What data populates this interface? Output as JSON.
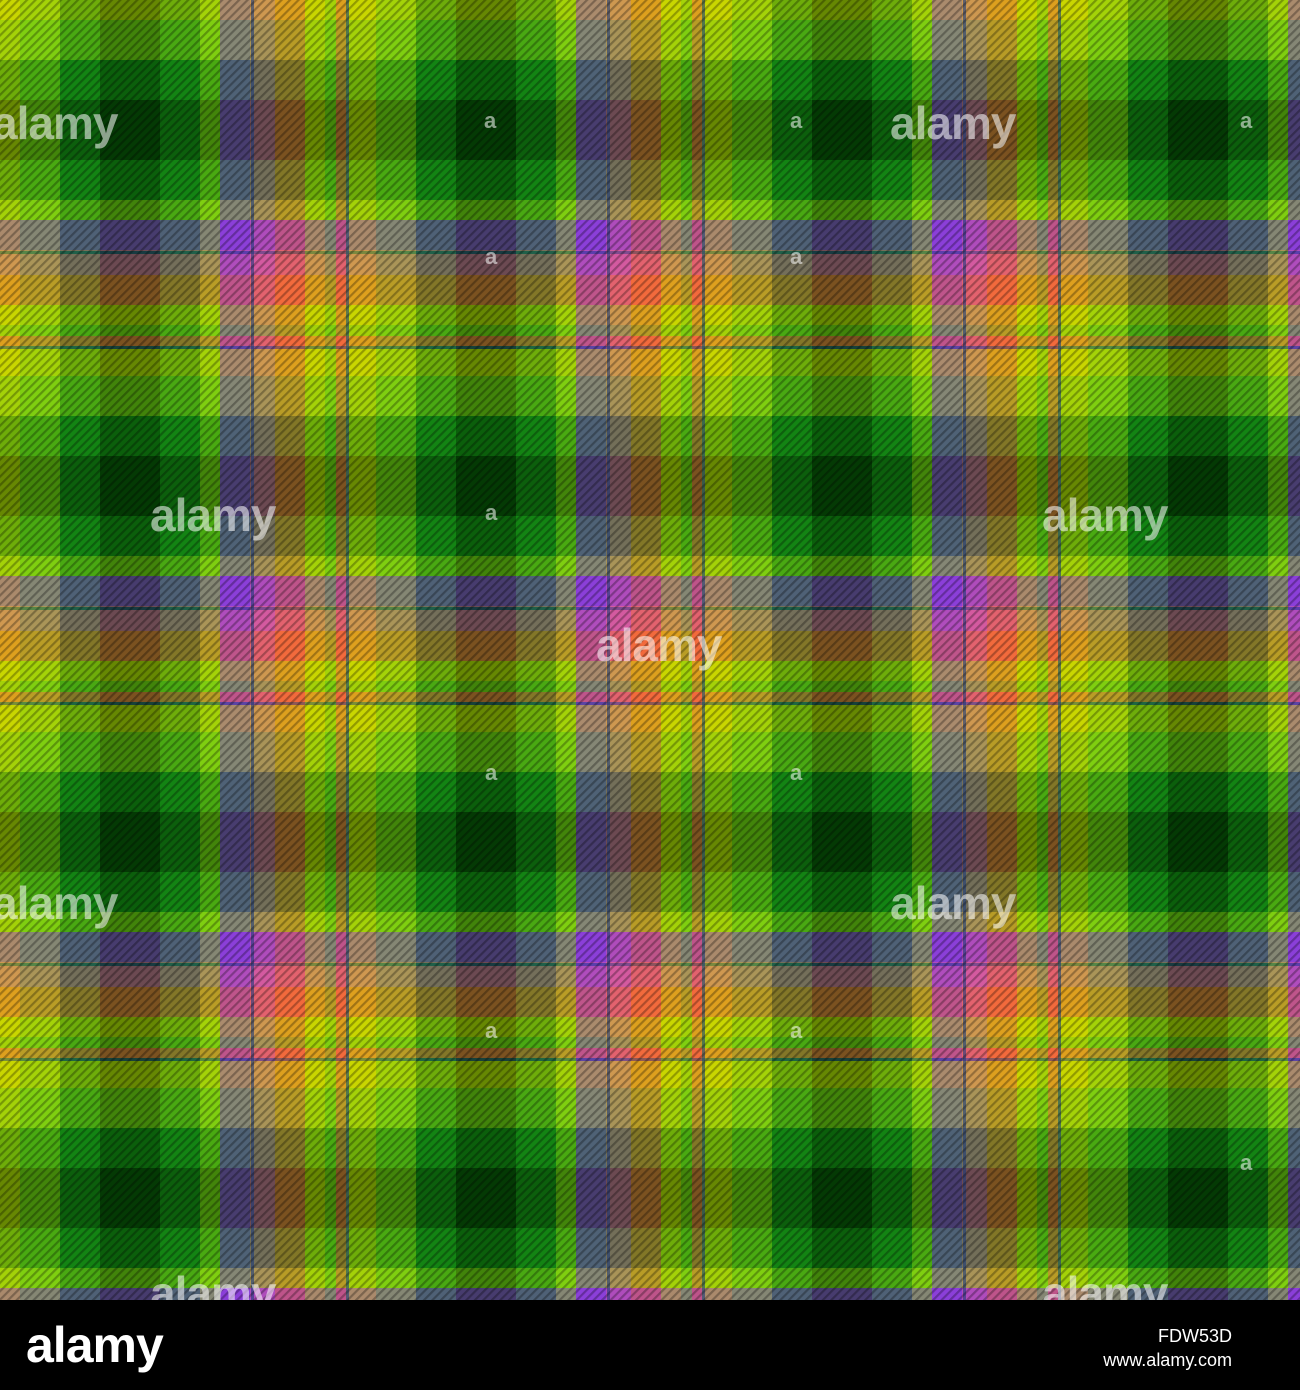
{
  "image": {
    "subject": "seamless tartan plaid pattern",
    "colors": {
      "orange": "#F26A3C",
      "yellow": "#C9D600",
      "lime": "#7FCF10",
      "green": "#138413",
      "dark_green": "#043A04",
      "purple": "#8B3FD9",
      "pink": "#D45AA0",
      "navy": "#1B3A7A"
    }
  },
  "watermark": {
    "text": "alamy",
    "small_mark": "a"
  },
  "footer": {
    "logo": "alamy",
    "image_id": "FDW53D",
    "url": "www.alamy.com"
  }
}
